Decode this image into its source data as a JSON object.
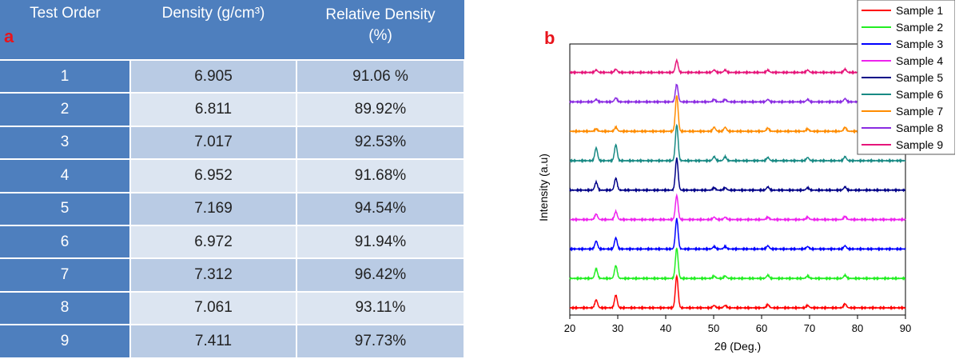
{
  "panel_a": {
    "label": "a",
    "headers": [
      "Test Order",
      "Density (g/cm³)",
      "Relative Density (%)"
    ],
    "rows": [
      [
        "1",
        "6.905",
        "91.06 %"
      ],
      [
        "2",
        "6.811",
        "89.92%"
      ],
      [
        "3",
        "7.017",
        "92.53%"
      ],
      [
        "4",
        "6.952",
        "91.68%"
      ],
      [
        "5",
        "7.169",
        "94.54%"
      ],
      [
        "6",
        "6.972",
        "91.94%"
      ],
      [
        "7",
        "7.312",
        "96.42%"
      ],
      [
        "8",
        "7.061",
        "93.11%"
      ],
      [
        "9",
        "7.411",
        "97.73%"
      ]
    ]
  },
  "panel_b": {
    "label": "b"
  },
  "chart_data": [
    {
      "type": "table",
      "columns": [
        "Test Order",
        "Density (g/cm³)",
        "Relative Density (%)"
      ],
      "values": [
        [
          1,
          6.905,
          91.06
        ],
        [
          2,
          6.811,
          89.92
        ],
        [
          3,
          7.017,
          92.53
        ],
        [
          4,
          6.952,
          91.68
        ],
        [
          5,
          7.169,
          94.54
        ],
        [
          6,
          6.972,
          91.94
        ],
        [
          7,
          7.312,
          96.42
        ],
        [
          8,
          7.061,
          93.11
        ],
        [
          9,
          7.411,
          97.73
        ]
      ]
    },
    {
      "type": "line",
      "title": "",
      "xlabel": "2θ (Deg.)",
      "ylabel": "Intensity (a.u)",
      "xlim": [
        20,
        90
      ],
      "xticks": [
        20,
        30,
        40,
        50,
        60,
        70,
        80,
        90
      ],
      "legend_position": "top-right",
      "peaks_2theta": [
        25.5,
        29.6,
        42.3,
        50.1,
        52.4,
        61.3,
        69.6,
        77.4
      ],
      "series": [
        {
          "name": "Sample 1",
          "color": "#ff0000",
          "offset": 0,
          "peak_heights": [
            10,
            16,
            40,
            3,
            3,
            4,
            3,
            5
          ]
        },
        {
          "name": "Sample 2",
          "color": "#22ee22",
          "offset": 1,
          "peak_heights": [
            12,
            16,
            38,
            3,
            3,
            4,
            3,
            4
          ]
        },
        {
          "name": "Sample 3",
          "color": "#0000ff",
          "offset": 2,
          "peak_heights": [
            10,
            14,
            38,
            3,
            3,
            4,
            3,
            4
          ]
        },
        {
          "name": "Sample 4",
          "color": "#ee22ee",
          "offset": 3,
          "peak_heights": [
            7,
            10,
            30,
            3,
            3,
            3,
            3,
            4
          ]
        },
        {
          "name": "Sample 5",
          "color": "#000088",
          "offset": 4,
          "peak_heights": [
            10,
            15,
            40,
            3,
            3,
            4,
            3,
            4
          ]
        },
        {
          "name": "Sample 6",
          "color": "#188a84",
          "offset": 5,
          "peak_heights": [
            16,
            20,
            45,
            5,
            5,
            4,
            4,
            5
          ]
        },
        {
          "name": "Sample 7",
          "color": "#ff8c00",
          "offset": 6,
          "peak_heights": [
            3,
            5,
            45,
            5,
            5,
            4,
            3,
            5
          ]
        },
        {
          "name": "Sample 8",
          "color": "#8a2be2",
          "offset": 7,
          "peak_heights": [
            3,
            5,
            22,
            3,
            3,
            3,
            3,
            4
          ]
        },
        {
          "name": "Sample 9",
          "color": "#e6157a",
          "offset": 8,
          "peak_heights": [
            3,
            4,
            15,
            3,
            3,
            3,
            3,
            4
          ]
        }
      ]
    }
  ]
}
